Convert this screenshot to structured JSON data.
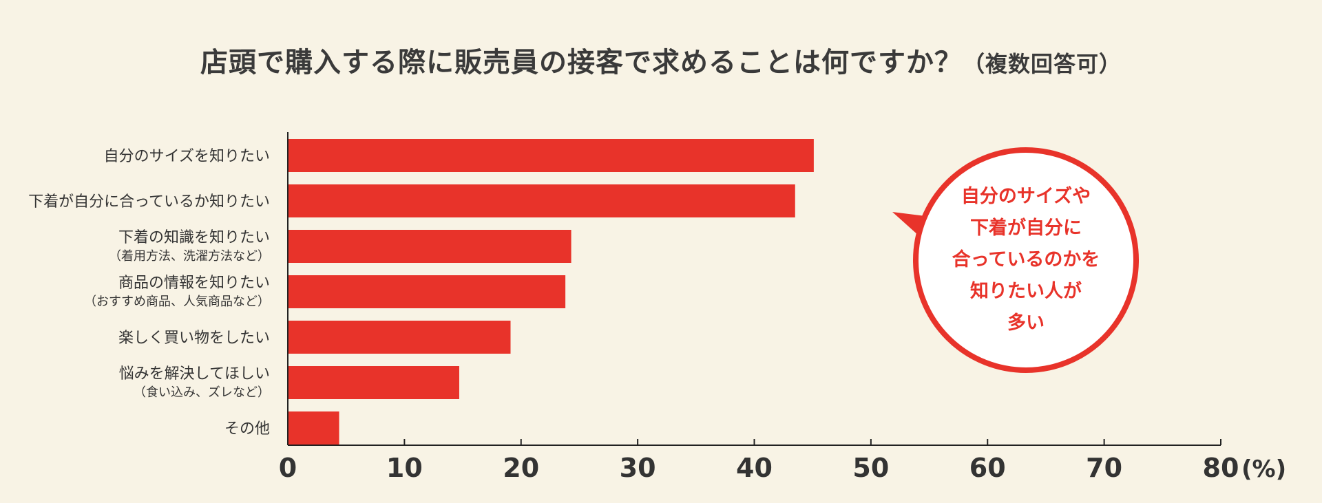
{
  "title": {
    "main": "店頭で購入する際に販売員の接客で求めることは何ですか？",
    "sub": "（複数回答可）"
  },
  "callout": {
    "text": "自分のサイズや\n下着が自分に\n合っているのかを\n知りたい人が\n多い"
  },
  "colors": {
    "bar": "#e8332a",
    "background": "#f8f3e5",
    "text": "#333333",
    "callout_border": "#e8332a"
  },
  "chart_data": {
    "type": "bar",
    "orientation": "horizontal",
    "categories": [
      [
        "自分のサイズを知りたい"
      ],
      [
        "下着が自分に合っているか知りたい"
      ],
      [
        "下着の知識を知りたい",
        "（着用方法、洗濯方法など）"
      ],
      [
        "商品の情報を知りたい",
        "（おすすめ商品、人気商品など）"
      ],
      [
        "楽しく買い物をしたい"
      ],
      [
        "悩みを解決してほしい",
        "（食い込み、ズレなど）"
      ],
      [
        "その他"
      ]
    ],
    "values": [
      45.1,
      43.5,
      24.3,
      23.8,
      19.1,
      14.7,
      4.4
    ],
    "xlim": [
      0,
      80
    ],
    "xticks": [
      0,
      10,
      20,
      30,
      40,
      50,
      60,
      70,
      80
    ],
    "unit": "(%)",
    "grid": false
  }
}
